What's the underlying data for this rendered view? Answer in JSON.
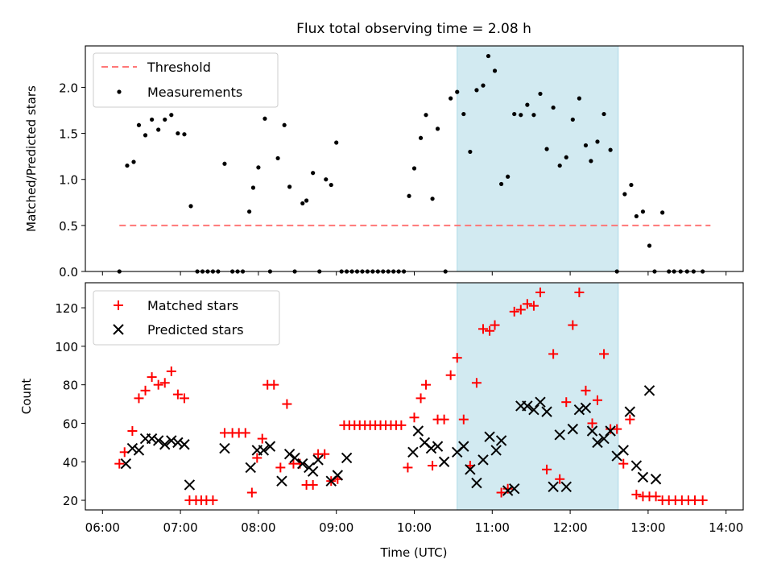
{
  "chart_data": [
    {
      "type": "scatter",
      "title": "Flux total observing time = 2.08 h",
      "ylabel": "Matched/Predicted stars",
      "xlabel": "",
      "xlim": [
        "06:00",
        "14:00"
      ],
      "ylim": [
        0,
        2.45
      ],
      "yticks": [
        0.0,
        0.5,
        1.0,
        1.5,
        2.0
      ],
      "ytick_labels": [
        "0.0",
        "0.5",
        "1.0",
        "1.5",
        "2.0"
      ],
      "shaded_span": [
        "10:33",
        "12:37"
      ],
      "threshold": {
        "name": "Threshold",
        "y": 0.5,
        "x_range": [
          "06:13",
          "13:48"
        ],
        "color": "#ff7777"
      },
      "legend": {
        "placement": "top-left",
        "entries": [
          "Threshold",
          "Measurements"
        ]
      },
      "series": [
        {
          "name": "Measurements",
          "color": "#000000",
          "points": [
            [
              "06:13",
              0.0
            ],
            [
              "06:19",
              1.15
            ],
            [
              "06:24",
              1.19
            ],
            [
              "06:28",
              1.59
            ],
            [
              "06:33",
              1.48
            ],
            [
              "06:38",
              1.65
            ],
            [
              "06:43",
              1.54
            ],
            [
              "06:48",
              1.65
            ],
            [
              "06:53",
              1.7
            ],
            [
              "06:58",
              1.5
            ],
            [
              "07:03",
              1.49
            ],
            [
              "07:08",
              0.71
            ],
            [
              "07:13",
              0.0
            ],
            [
              "07:17",
              0.0
            ],
            [
              "07:21",
              0.0
            ],
            [
              "07:25",
              0.0
            ],
            [
              "07:29",
              0.0
            ],
            [
              "07:34",
              1.17
            ],
            [
              "07:40",
              0.0
            ],
            [
              "07:44",
              0.0
            ],
            [
              "07:48",
              0.0
            ],
            [
              "07:53",
              0.65
            ],
            [
              "07:56",
              0.91
            ],
            [
              "08:00",
              1.13
            ],
            [
              "08:05",
              1.66
            ],
            [
              "08:09",
              0.0
            ],
            [
              "08:15",
              1.23
            ],
            [
              "08:20",
              1.59
            ],
            [
              "08:24",
              0.92
            ],
            [
              "08:28",
              0.0
            ],
            [
              "08:34",
              0.74
            ],
            [
              "08:37",
              0.77
            ],
            [
              "08:42",
              1.07
            ],
            [
              "08:47",
              0.0
            ],
            [
              "08:52",
              1.0
            ],
            [
              "08:56",
              0.94
            ],
            [
              "09:00",
              1.4
            ],
            [
              "09:04",
              0.0
            ],
            [
              "09:08",
              0.0
            ],
            [
              "09:12",
              0.0
            ],
            [
              "09:16",
              0.0
            ],
            [
              "09:20",
              0.0
            ],
            [
              "09:24",
              0.0
            ],
            [
              "09:28",
              0.0
            ],
            [
              "09:32",
              0.0
            ],
            [
              "09:36",
              0.0
            ],
            [
              "09:40",
              0.0
            ],
            [
              "09:44",
              0.0
            ],
            [
              "09:48",
              0.0
            ],
            [
              "09:52",
              0.0
            ],
            [
              "09:56",
              0.82
            ],
            [
              "10:00",
              1.12
            ],
            [
              "10:05",
              1.45
            ],
            [
              "10:09",
              1.7
            ],
            [
              "10:14",
              0.79
            ],
            [
              "10:18",
              1.55
            ],
            [
              "10:24",
              0.0
            ],
            [
              "10:28",
              1.88
            ],
            [
              "10:33",
              1.95
            ],
            [
              "10:38",
              1.71
            ],
            [
              "10:43",
              1.3
            ],
            [
              "10:48",
              1.97
            ],
            [
              "10:53",
              2.02
            ],
            [
              "10:57",
              2.34
            ],
            [
              "11:02",
              2.18
            ],
            [
              "11:07",
              0.95
            ],
            [
              "11:12",
              1.03
            ],
            [
              "11:17",
              1.71
            ],
            [
              "11:22",
              1.7
            ],
            [
              "11:27",
              1.81
            ],
            [
              "11:32",
              1.7
            ],
            [
              "11:37",
              1.93
            ],
            [
              "11:42",
              1.33
            ],
            [
              "11:47",
              1.78
            ],
            [
              "11:52",
              1.15
            ],
            [
              "11:57",
              1.24
            ],
            [
              "12:02",
              1.65
            ],
            [
              "12:07",
              1.88
            ],
            [
              "12:12",
              1.37
            ],
            [
              "12:16",
              1.2
            ],
            [
              "12:21",
              1.41
            ],
            [
              "12:26",
              1.71
            ],
            [
              "12:31",
              1.32
            ],
            [
              "12:36",
              0.0
            ],
            [
              "12:42",
              0.84
            ],
            [
              "12:47",
              0.94
            ],
            [
              "12:51",
              0.6
            ],
            [
              "12:56",
              0.65
            ],
            [
              "13:01",
              0.28
            ],
            [
              "13:05",
              0.0
            ],
            [
              "13:11",
              0.64
            ],
            [
              "13:16",
              0.0
            ],
            [
              "13:20",
              0.0
            ],
            [
              "13:25",
              0.0
            ],
            [
              "13:30",
              0.0
            ],
            [
              "13:35",
              0.0
            ],
            [
              "13:42",
              0.0
            ]
          ]
        }
      ]
    },
    {
      "type": "scatter",
      "title": "",
      "xlabel": "Time (UTC)",
      "ylabel": "Count",
      "xlim": [
        "06:00",
        "14:00"
      ],
      "xticks": [
        "06:00",
        "07:00",
        "08:00",
        "09:00",
        "10:00",
        "11:00",
        "12:00",
        "13:00",
        "14:00"
      ],
      "ylim": [
        15,
        133
      ],
      "yticks": [
        20,
        40,
        60,
        80,
        100,
        120
      ],
      "ytick_labels": [
        "20",
        "40",
        "60",
        "80",
        "100",
        "120"
      ],
      "shaded_span": [
        "10:33",
        "12:37"
      ],
      "legend": {
        "placement": "top-left",
        "entries": [
          "Matched stars",
          "Predicted stars"
        ]
      },
      "series": [
        {
          "name": "Matched stars",
          "marker": "+",
          "color": "#ff0000",
          "points": [
            [
              "06:13",
              39
            ],
            [
              "06:17",
              45
            ],
            [
              "06:23",
              56
            ],
            [
              "06:28",
              73
            ],
            [
              "06:33",
              77
            ],
            [
              "06:38",
              84
            ],
            [
              "06:43",
              80
            ],
            [
              "06:48",
              81
            ],
            [
              "06:53",
              87
            ],
            [
              "06:58",
              75
            ],
            [
              "07:03",
              73
            ],
            [
              "07:07",
              20
            ],
            [
              "07:12",
              20
            ],
            [
              "07:16",
              20
            ],
            [
              "07:20",
              20
            ],
            [
              "07:25",
              20
            ],
            [
              "07:34",
              55
            ],
            [
              "07:40",
              55
            ],
            [
              "07:45",
              55
            ],
            [
              "07:50",
              55
            ],
            [
              "07:55",
              24
            ],
            [
              "07:59",
              42
            ],
            [
              "08:03",
              52
            ],
            [
              "08:07",
              80
            ],
            [
              "08:12",
              80
            ],
            [
              "08:17",
              37
            ],
            [
              "08:22",
              70
            ],
            [
              "08:27",
              39
            ],
            [
              "08:32",
              39
            ],
            [
              "08:37",
              28
            ],
            [
              "08:42",
              28
            ],
            [
              "08:46",
              44
            ],
            [
              "08:51",
              44
            ],
            [
              "08:56",
              30
            ],
            [
              "09:01",
              31
            ],
            [
              "09:06",
              59
            ],
            [
              "09:10",
              59
            ],
            [
              "09:14",
              59
            ],
            [
              "09:18",
              59
            ],
            [
              "09:22",
              59
            ],
            [
              "09:26",
              59
            ],
            [
              "09:30",
              59
            ],
            [
              "09:34",
              59
            ],
            [
              "09:38",
              59
            ],
            [
              "09:42",
              59
            ],
            [
              "09:46",
              59
            ],
            [
              "09:50",
              59
            ],
            [
              "09:55",
              37
            ],
            [
              "10:00",
              63
            ],
            [
              "10:05",
              73
            ],
            [
              "10:09",
              80
            ],
            [
              "10:14",
              38
            ],
            [
              "10:18",
              62
            ],
            [
              "10:23",
              62
            ],
            [
              "10:28",
              85
            ],
            [
              "10:33",
              94
            ],
            [
              "10:38",
              62
            ],
            [
              "10:43",
              38
            ],
            [
              "10:48",
              81
            ],
            [
              "10:53",
              109
            ],
            [
              "10:58",
              108
            ],
            [
              "11:02",
              111
            ],
            [
              "11:07",
              24
            ],
            [
              "11:12",
              26
            ],
            [
              "11:17",
              118
            ],
            [
              "11:22",
              119
            ],
            [
              "11:27",
              122
            ],
            [
              "11:32",
              121
            ],
            [
              "11:37",
              128
            ],
            [
              "11:42",
              36
            ],
            [
              "11:47",
              96
            ],
            [
              "11:52",
              31
            ],
            [
              "11:57",
              71
            ],
            [
              "12:02",
              111
            ],
            [
              "12:07",
              128
            ],
            [
              "12:12",
              77
            ],
            [
              "12:17",
              60
            ],
            [
              "12:21",
              72
            ],
            [
              "12:26",
              96
            ],
            [
              "12:31",
              57
            ],
            [
              "12:36",
              57
            ],
            [
              "12:41",
              39
            ],
            [
              "12:46",
              62
            ],
            [
              "12:51",
              23
            ],
            [
              "12:56",
              22
            ],
            [
              "13:01",
              22
            ],
            [
              "13:06",
              22
            ],
            [
              "13:11",
              20
            ],
            [
              "13:16",
              20
            ],
            [
              "13:21",
              20
            ],
            [
              "13:26",
              20
            ],
            [
              "13:31",
              20
            ],
            [
              "13:36",
              20
            ],
            [
              "13:42",
              20
            ]
          ]
        },
        {
          "name": "Predicted stars",
          "marker": "x",
          "color": "#000000",
          "points": [
            [
              "06:18",
              39
            ],
            [
              "06:23",
              47
            ],
            [
              "06:28",
              46
            ],
            [
              "06:33",
              52
            ],
            [
              "06:38",
              52
            ],
            [
              "06:43",
              51
            ],
            [
              "06:48",
              49
            ],
            [
              "06:53",
              51
            ],
            [
              "06:58",
              50
            ],
            [
              "07:03",
              49
            ],
            [
              "07:07",
              28
            ],
            [
              "07:34",
              47
            ],
            [
              "07:54",
              37
            ],
            [
              "07:59",
              46
            ],
            [
              "08:04",
              46
            ],
            [
              "08:09",
              48
            ],
            [
              "08:18",
              30
            ],
            [
              "08:24",
              44
            ],
            [
              "08:28",
              42
            ],
            [
              "08:34",
              39
            ],
            [
              "08:39",
              37
            ],
            [
              "08:42",
              35
            ],
            [
              "08:46",
              41
            ],
            [
              "08:56",
              30
            ],
            [
              "09:01",
              33
            ],
            [
              "09:08",
              42
            ],
            [
              "09:59",
              45
            ],
            [
              "10:03",
              56
            ],
            [
              "10:08",
              50
            ],
            [
              "10:13",
              47
            ],
            [
              "10:18",
              48
            ],
            [
              "10:23",
              40
            ],
            [
              "10:33",
              45
            ],
            [
              "10:38",
              48
            ],
            [
              "10:43",
              36
            ],
            [
              "10:48",
              29
            ],
            [
              "10:53",
              41
            ],
            [
              "10:58",
              53
            ],
            [
              "11:03",
              46
            ],
            [
              "11:07",
              51
            ],
            [
              "11:12",
              25
            ],
            [
              "11:17",
              26
            ],
            [
              "11:22",
              69
            ],
            [
              "11:27",
              69
            ],
            [
              "11:32",
              67
            ],
            [
              "11:37",
              71
            ],
            [
              "11:42",
              66
            ],
            [
              "11:47",
              27
            ],
            [
              "11:52",
              54
            ],
            [
              "11:57",
              27
            ],
            [
              "12:02",
              57
            ],
            [
              "12:07",
              67
            ],
            [
              "12:12",
              68
            ],
            [
              "12:17",
              56
            ],
            [
              "12:21",
              50
            ],
            [
              "12:26",
              52
            ],
            [
              "12:31",
              56
            ],
            [
              "12:36",
              43
            ],
            [
              "12:41",
              46
            ],
            [
              "12:46",
              66
            ],
            [
              "12:51",
              38
            ],
            [
              "12:56",
              32
            ],
            [
              "13:01",
              77
            ],
            [
              "13:06",
              31
            ]
          ]
        }
      ]
    }
  ]
}
